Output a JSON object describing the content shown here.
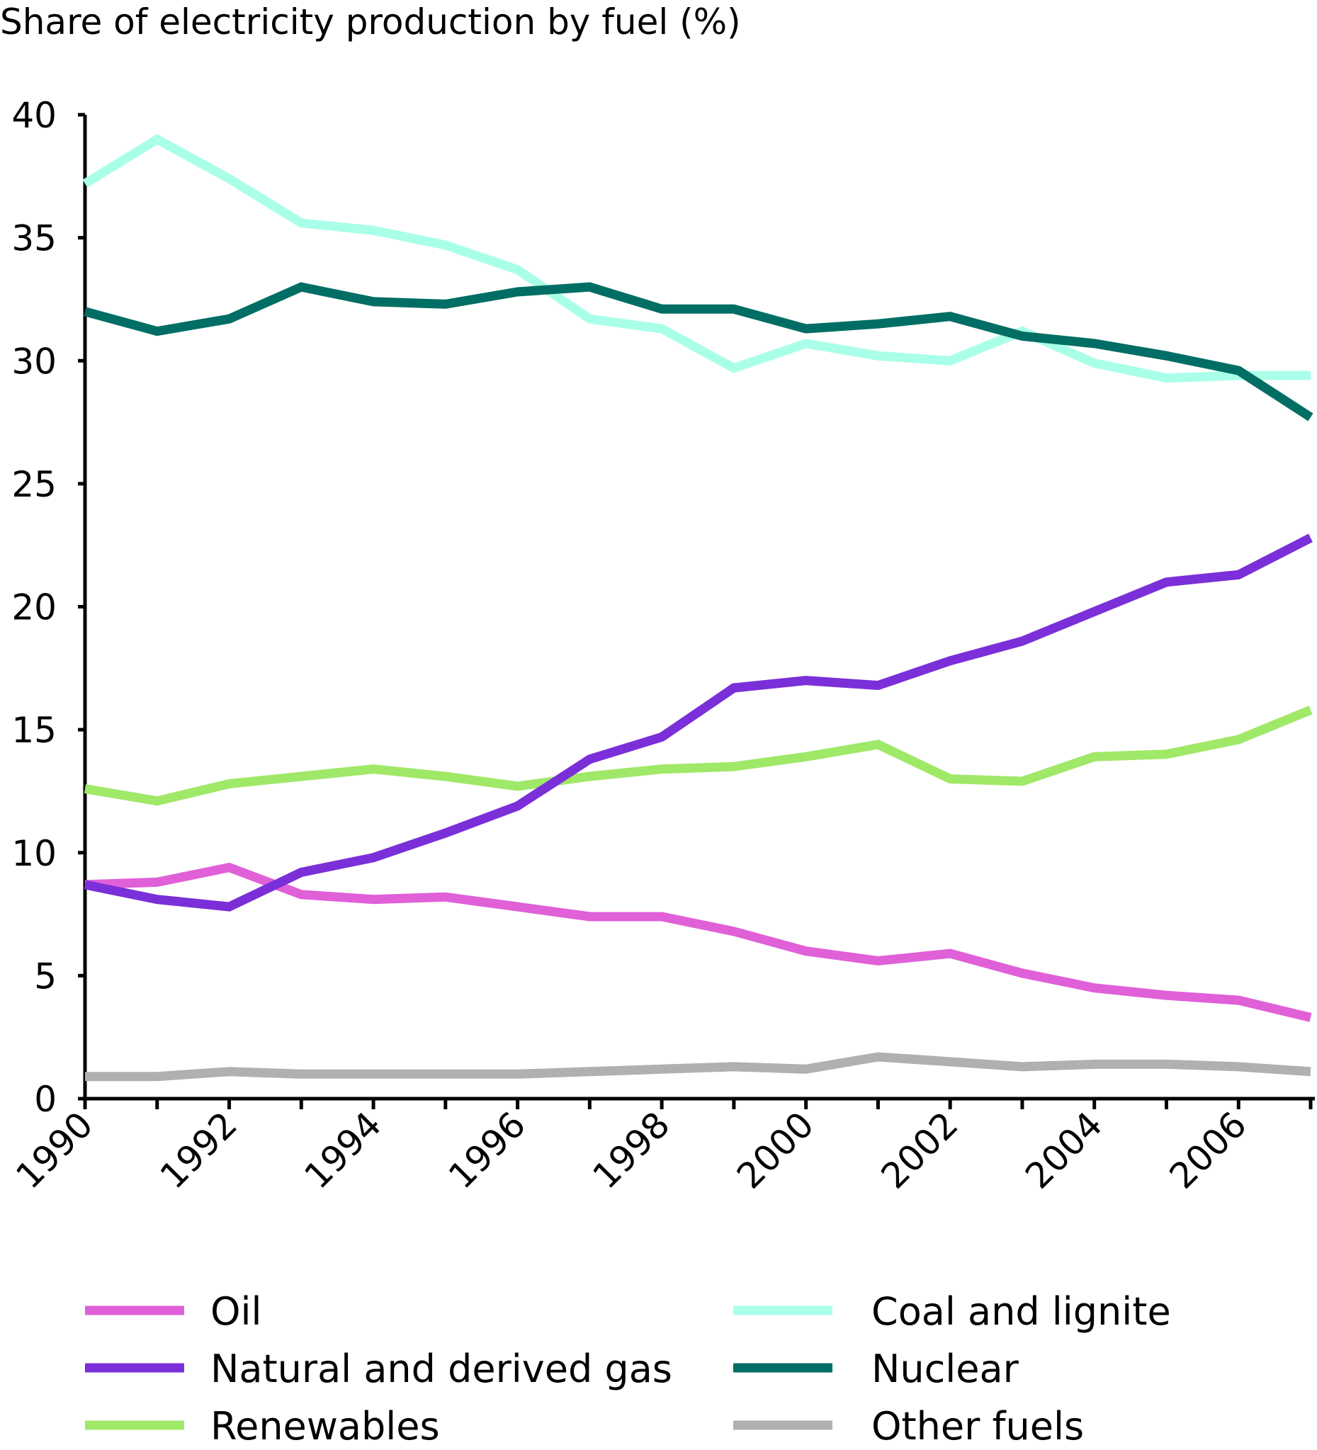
{
  "chart_data": {
    "type": "line",
    "title": "Share of electricity production by fuel (%)",
    "xlabel": "",
    "ylabel": "",
    "ylim": [
      0,
      40
    ],
    "yticks": [
      "0",
      "5",
      "10",
      "15",
      "20",
      "25",
      "30",
      "35",
      "40"
    ],
    "x": [
      1990,
      1991,
      1992,
      1993,
      1994,
      1995,
      1996,
      1997,
      1998,
      1999,
      2000,
      2001,
      2002,
      2003,
      2004,
      2005,
      2006,
      2007
    ],
    "xtick_labels": [
      "1990",
      "1992",
      "1994",
      "1996",
      "1998",
      "2000",
      "2002",
      "2004",
      "2006"
    ],
    "grid": false,
    "legend_position": "bottom",
    "series": [
      {
        "name": "Oil",
        "color": "#e060d8",
        "values": [
          8.7,
          8.8,
          9.4,
          8.3,
          8.1,
          8.2,
          7.8,
          7.4,
          7.4,
          6.8,
          6.0,
          5.6,
          5.9,
          5.1,
          4.5,
          4.2,
          4.0,
          3.3
        ]
      },
      {
        "name": "Coal and lignite",
        "color": "#aaffe8",
        "values": [
          37.2,
          39.0,
          37.4,
          35.6,
          35.3,
          34.7,
          33.7,
          31.7,
          31.3,
          29.7,
          30.7,
          30.2,
          30.0,
          31.2,
          29.9,
          29.3,
          29.4,
          29.4
        ]
      },
      {
        "name": "Natural and derived gas",
        "color": "#7b2fd8",
        "values": [
          8.7,
          8.1,
          7.8,
          9.2,
          9.8,
          10.8,
          11.9,
          13.8,
          14.7,
          16.7,
          17.0,
          16.8,
          17.8,
          18.6,
          19.8,
          21.0,
          21.3,
          22.8
        ]
      },
      {
        "name": "Nuclear",
        "color": "#006e64",
        "values": [
          32.0,
          31.2,
          31.7,
          33.0,
          32.4,
          32.3,
          32.8,
          33.0,
          32.1,
          32.1,
          31.3,
          31.5,
          31.8,
          31.0,
          30.7,
          30.2,
          29.6,
          27.7
        ]
      },
      {
        "name": "Renewables",
        "color": "#a0e868",
        "values": [
          12.6,
          12.1,
          12.8,
          13.1,
          13.4,
          13.1,
          12.7,
          13.1,
          13.4,
          13.5,
          13.9,
          14.4,
          13.0,
          12.9,
          13.9,
          14.0,
          14.6,
          15.8
        ]
      },
      {
        "name": "Other fuels",
        "color": "#b0b0b0",
        "values": [
          0.9,
          0.9,
          1.1,
          1.0,
          1.0,
          1.0,
          1.0,
          1.1,
          1.2,
          1.3,
          1.2,
          1.7,
          1.5,
          1.3,
          1.4,
          1.4,
          1.3,
          1.1
        ]
      }
    ]
  }
}
